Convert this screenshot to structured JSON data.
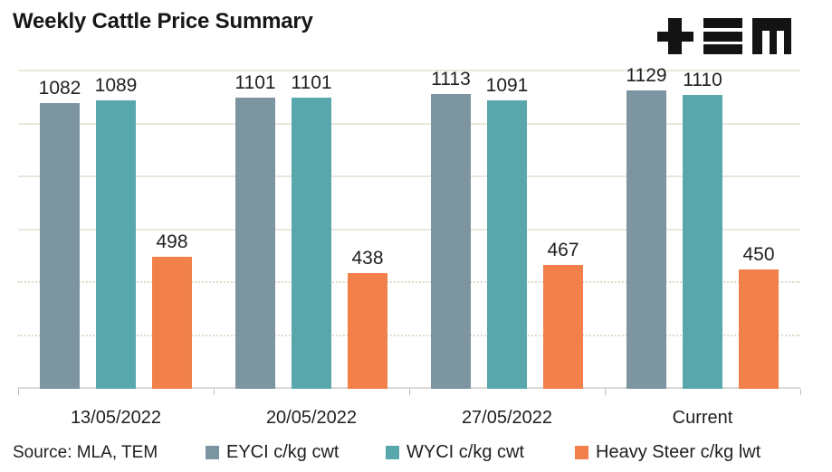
{
  "title": "Weekly Cattle Price Summary",
  "source_note": "Source: MLA, TEM",
  "logo": {
    "icon": "tem-logo",
    "parts": [
      "plus-icon",
      "triple-bar-icon",
      "m-icon"
    ],
    "color": "#131313"
  },
  "colors": {
    "series_1": "#7D94A1",
    "series_2": "#58A7AD",
    "series_3": "#F2804A",
    "gridline": "#e9e7dc",
    "text": "#1f1f1f"
  },
  "chart_data": {
    "type": "bar",
    "title": "Weekly Cattle Price Summary",
    "categories": [
      "13/05/2022",
      "20/05/2022",
      "27/05/2022",
      "Current"
    ],
    "series": [
      {
        "name": "EYCI c/kg cwt",
        "color": "#7D94A1",
        "values": [
          1082,
          1101,
          1113,
          1129
        ]
      },
      {
        "name": "WYCI c/kg cwt",
        "color": "#58A7AD",
        "values": [
          1089,
          1101,
          1091,
          1110
        ]
      },
      {
        "name": "Heavy Steer c/kg lwt",
        "color": "#F2804A",
        "values": [
          498,
          438,
          467,
          450
        ]
      }
    ],
    "xlabel": "",
    "ylabel": "",
    "ylim": [
      0,
      1200
    ],
    "grid_step": 200,
    "grid": true,
    "y_axis_labels_shown": false,
    "data_labels": true,
    "legend_position": "bottom"
  }
}
